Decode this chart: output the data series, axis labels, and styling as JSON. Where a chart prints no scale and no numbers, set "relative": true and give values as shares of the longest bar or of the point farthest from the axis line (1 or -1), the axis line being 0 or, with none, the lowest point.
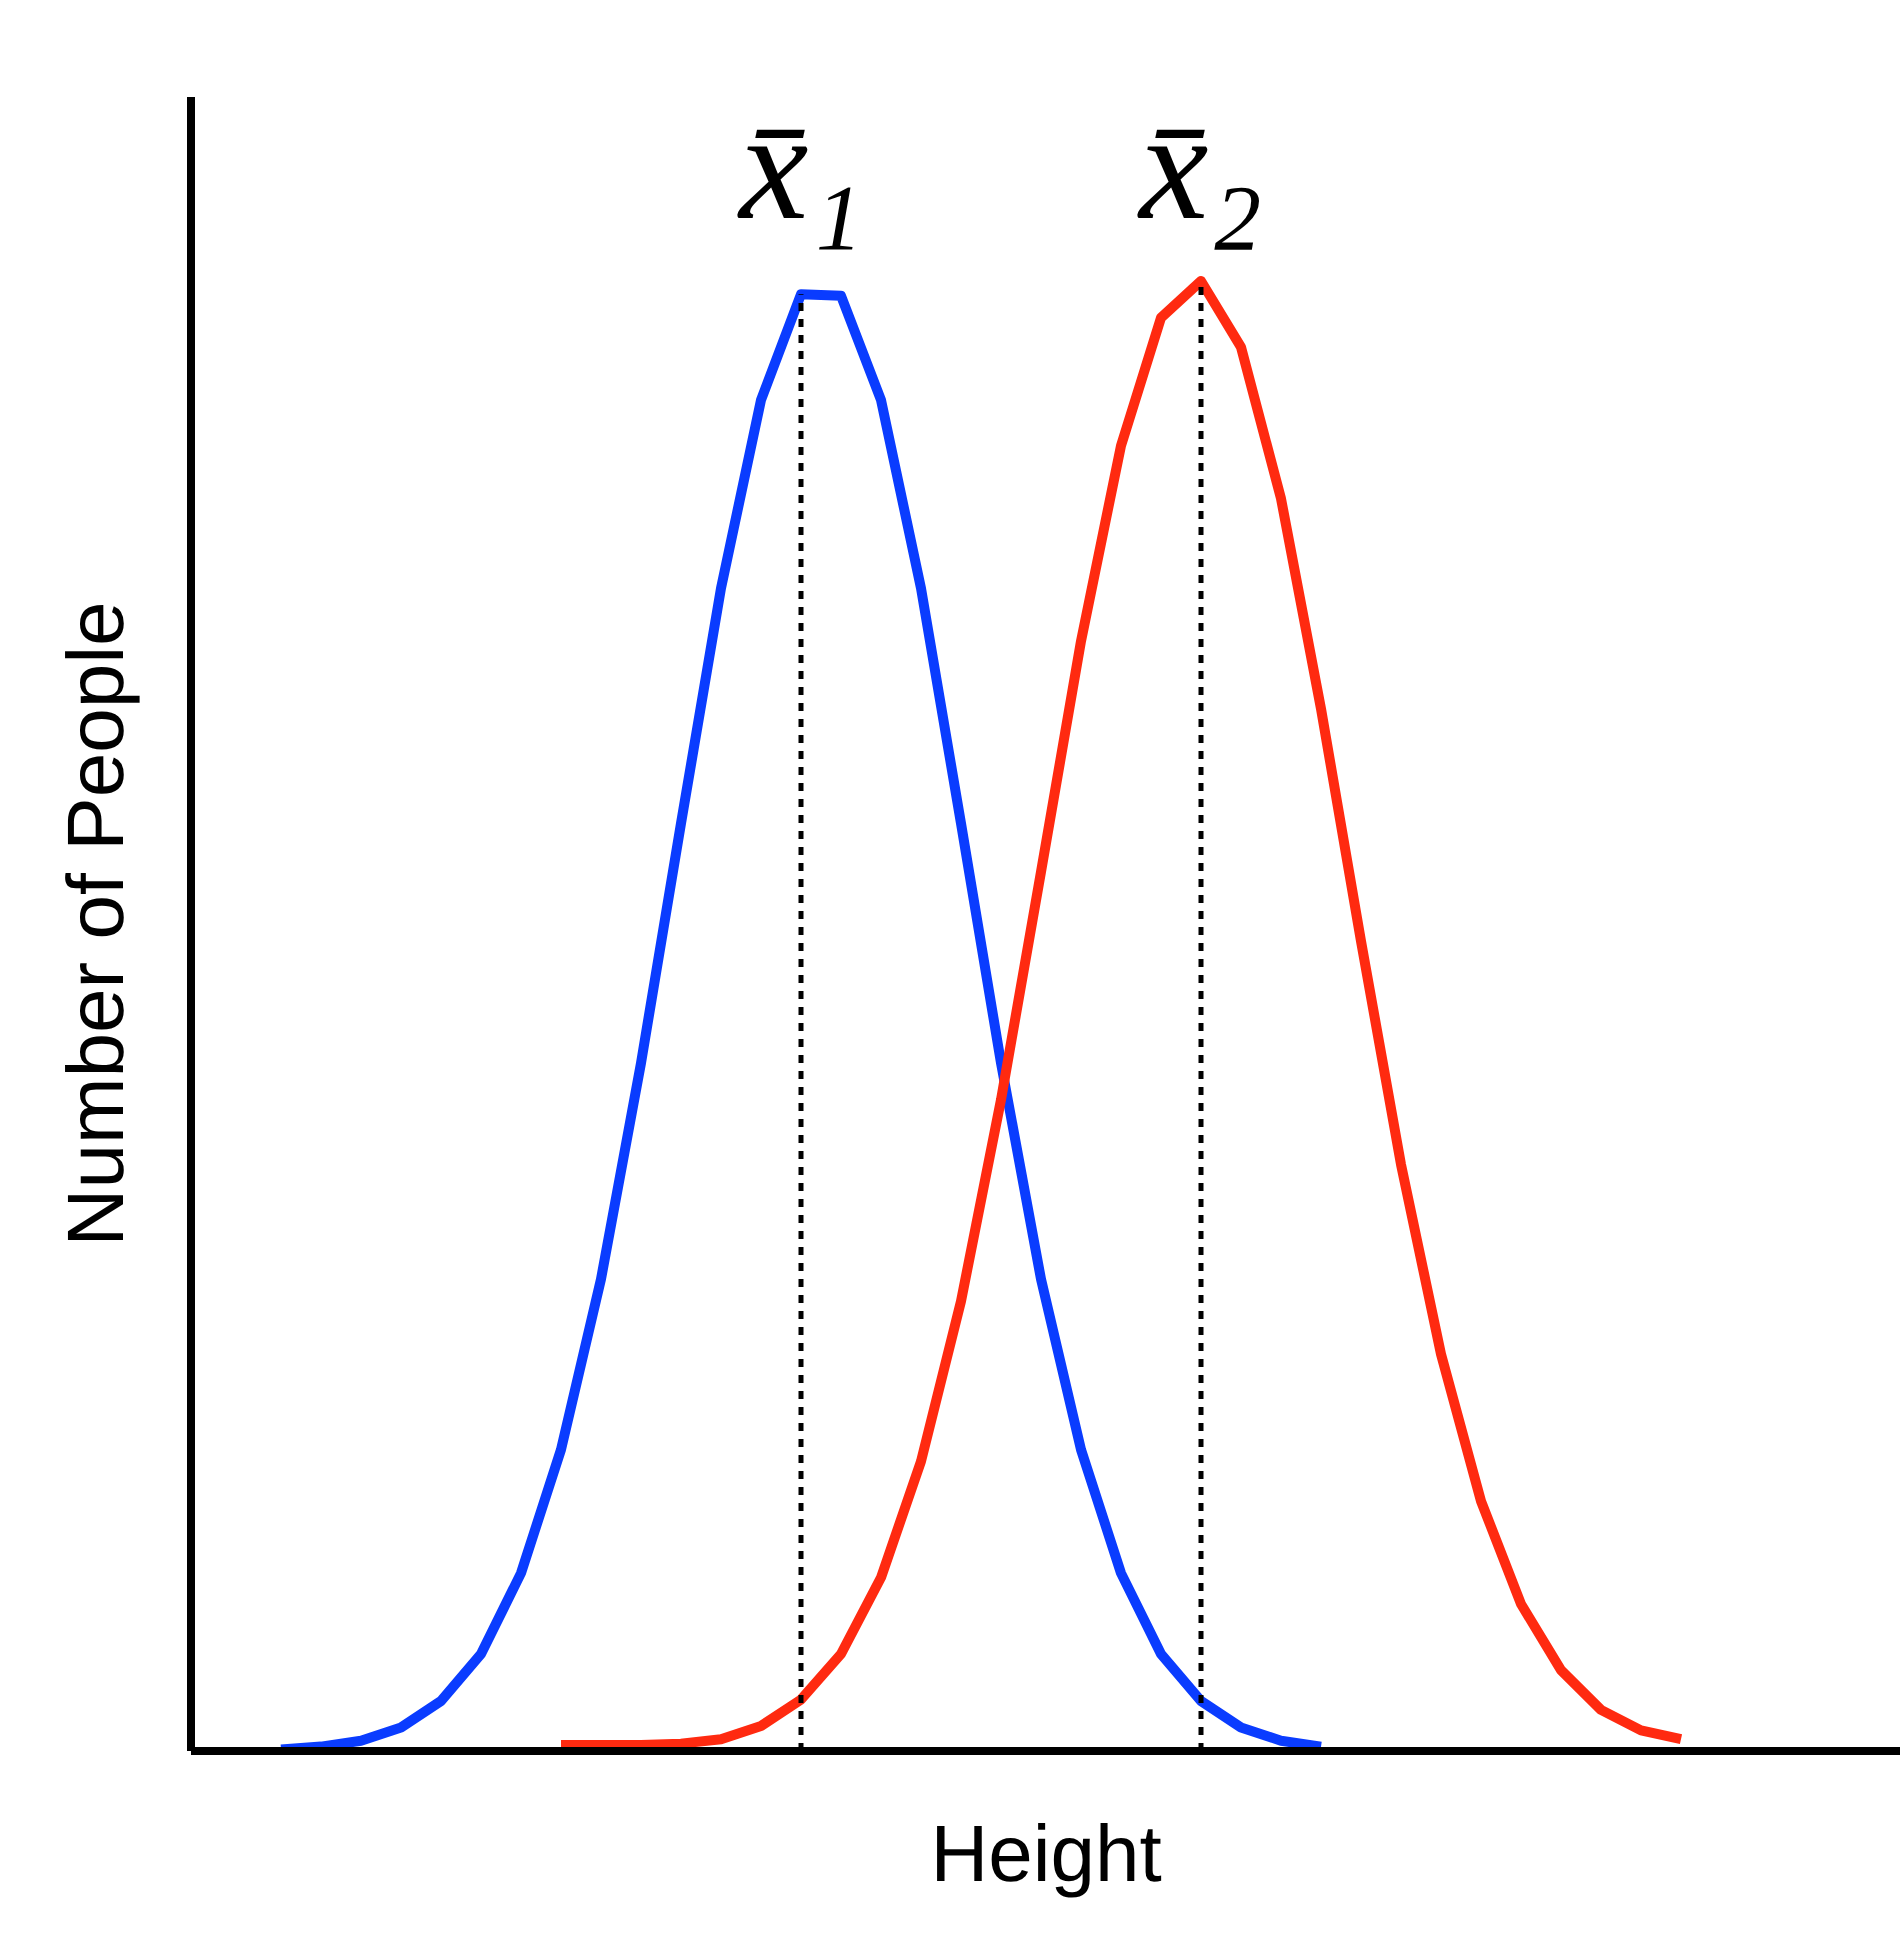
{
  "chart_data": {
    "type": "line",
    "relative": true,
    "xlabel": "Height",
    "ylabel": "Number of People",
    "tick_labels": false,
    "categories": [
      null,
      null,
      null,
      null,
      null,
      null,
      null,
      null,
      null,
      null,
      null,
      null,
      null,
      null,
      null,
      null,
      null,
      null,
      null,
      null,
      null,
      null,
      null,
      null,
      null,
      null,
      null,
      null,
      null,
      null,
      null,
      null,
      null,
      null,
      null,
      null
    ],
    "series": [
      {
        "color": "#0a3cff",
        "values": [
          0.001,
          0.003,
          0.007,
          0.016,
          0.034,
          0.066,
          0.121,
          0.205,
          0.321,
          0.468,
          0.631,
          0.791,
          0.919,
          0.991,
          0.99,
          0.919,
          0.791,
          0.631,
          0.468,
          0.321,
          0.205,
          0.121,
          0.066,
          0.034,
          0.016,
          0.007,
          0.003,
          null,
          null,
          null,
          null,
          null,
          null,
          null,
          null,
          null
        ]
      },
      {
        "color": "#ff2a10",
        "values": [
          null,
          null,
          null,
          null,
          null,
          null,
          null,
          0.004,
          0.004,
          0.004,
          0.005,
          0.008,
          0.017,
          0.035,
          0.066,
          0.118,
          0.197,
          0.306,
          0.443,
          0.598,
          0.755,
          0.888,
          0.975,
          1,
          0.955,
          0.852,
          0.709,
          0.551,
          0.399,
          0.27,
          0.17,
          0.1,
          0.055,
          0.028,
          0.014,
          0.008
        ]
      }
    ],
    "annotations": [
      "x̄₁",
      "x̄₂"
    ]
  }
}
